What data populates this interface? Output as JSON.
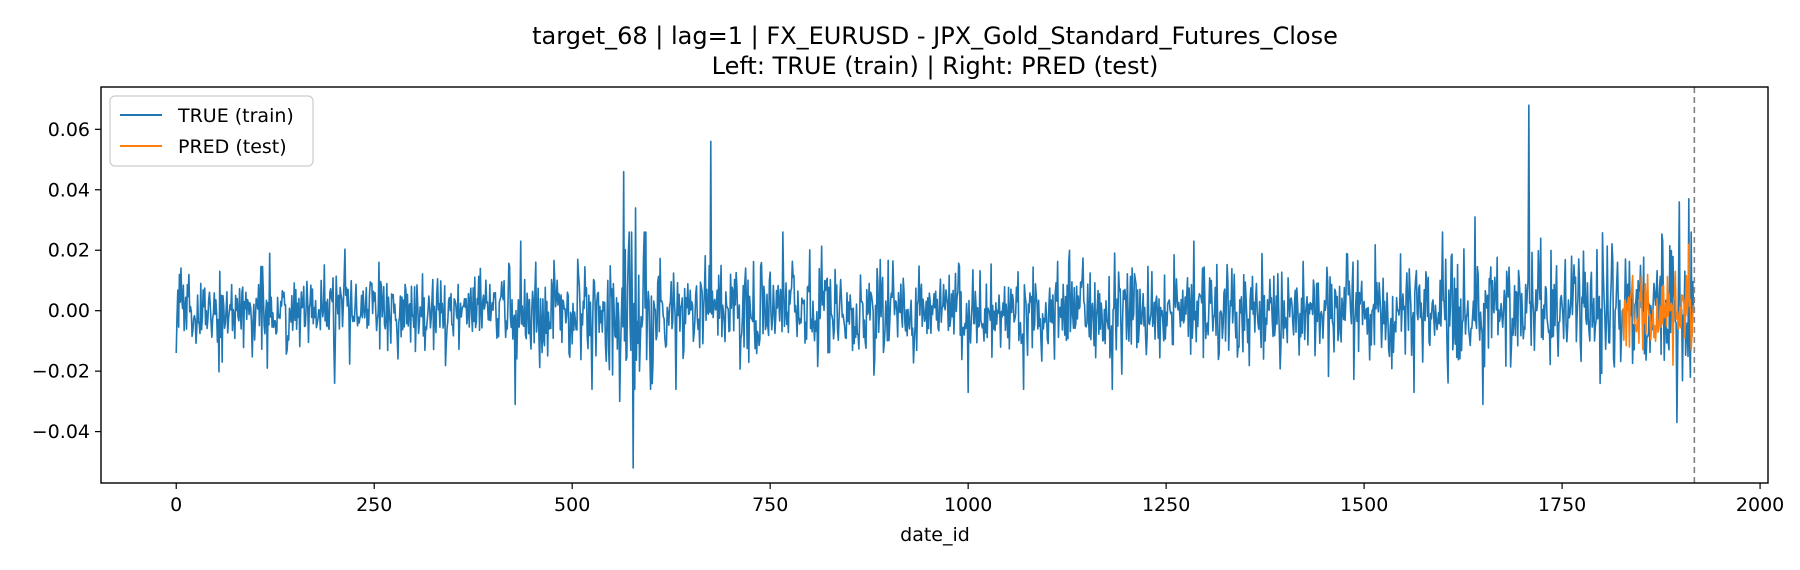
{
  "chart_data": {
    "type": "line",
    "title": "target_68 | lag=1 | FX_EURUSD - JPX_Gold_Standard_Futures_Close",
    "subtitle": "Left: TRUE (train) | Right: PRED (test)",
    "xlabel": "date_id",
    "ylabel": "",
    "xlim": [
      -95,
      2010
    ],
    "ylim": [
      -0.057,
      0.074
    ],
    "x_ticks": [
      0,
      250,
      500,
      750,
      1000,
      1250,
      1500,
      1750,
      2000
    ],
    "x_tick_labels": [
      "0",
      "250",
      "500",
      "750",
      "1000",
      "1250",
      "1500",
      "1750",
      "2000"
    ],
    "y_ticks": [
      -0.04,
      -0.02,
      0.0,
      0.02,
      0.04,
      0.06
    ],
    "y_tick_labels": [
      "−0.04",
      "−0.02",
      "0.00",
      "0.02",
      "0.04",
      "0.06"
    ],
    "grid": false,
    "legend_position": "top-left",
    "vline": {
      "x": 1917,
      "style": "dashed",
      "color": "#808080"
    },
    "series": [
      {
        "name": "TRUE (train)",
        "color": "#1f77b4",
        "x_range": [
          0,
          1916
        ],
        "notable_points": [
          {
            "x": 0,
            "y": -0.014
          },
          {
            "x": 4,
            "y": 0.012
          },
          {
            "x": 58,
            "y": -0.017
          },
          {
            "x": 115,
            "y": -0.019
          },
          {
            "x": 118,
            "y": 0.019
          },
          {
            "x": 200,
            "y": -0.024
          },
          {
            "x": 428,
            "y": -0.031
          },
          {
            "x": 435,
            "y": 0.023
          },
          {
            "x": 560,
            "y": -0.03
          },
          {
            "x": 565,
            "y": 0.046
          },
          {
            "x": 577,
            "y": -0.052
          },
          {
            "x": 580,
            "y": 0.034
          },
          {
            "x": 675,
            "y": 0.056
          },
          {
            "x": 1000,
            "y": -0.027
          },
          {
            "x": 1285,
            "y": 0.023
          },
          {
            "x": 1563,
            "y": -0.027
          },
          {
            "x": 1640,
            "y": 0.031
          },
          {
            "x": 1650,
            "y": -0.031
          },
          {
            "x": 1708,
            "y": 0.068
          },
          {
            "x": 1895,
            "y": -0.037
          },
          {
            "x": 1898,
            "y": 0.036
          },
          {
            "x": 1910,
            "y": 0.037
          },
          {
            "x": 1912,
            "y": -0.022
          }
        ]
      },
      {
        "name": "PRED (test)",
        "color": "#ff7f0e",
        "x_range": [
          1827,
          1916
        ],
        "notable_points": [
          {
            "x": 1835,
            "y": -0.012
          },
          {
            "x": 1858,
            "y": 0.012
          },
          {
            "x": 1890,
            "y": -0.018
          },
          {
            "x": 1893,
            "y": 0.013
          },
          {
            "x": 1910,
            "y": 0.022
          },
          {
            "x": 1913,
            "y": -0.013
          }
        ]
      }
    ]
  }
}
